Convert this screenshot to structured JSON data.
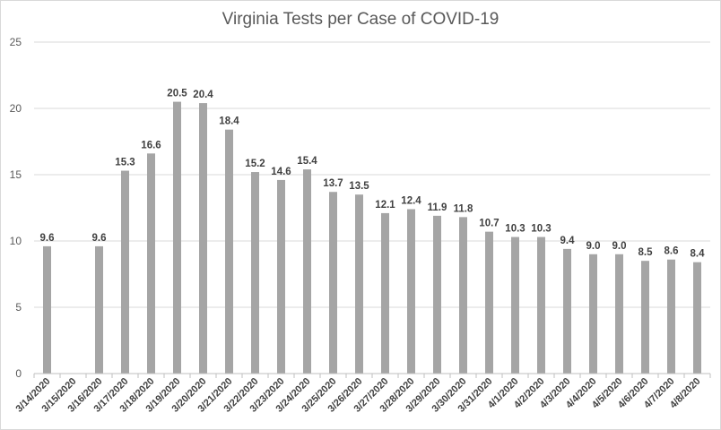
{
  "chart_data": {
    "type": "bar",
    "title": "Virginia Tests per Case of COVID-19",
    "xlabel": "",
    "ylabel": "",
    "ylim": [
      0,
      25
    ],
    "yticks": [
      "0",
      "5",
      "10",
      "15",
      "20",
      "25"
    ],
    "grid": true,
    "legend": "none",
    "bar_color": "#a5a5a5",
    "categories": [
      "3/14/2020",
      "3/15/2020",
      "3/16/2020",
      "3/17/2020",
      "3/18/2020",
      "3/19/2020",
      "3/20/2020",
      "3/21/2020",
      "3/22/2020",
      "3/23/2020",
      "3/24/2020",
      "3/25/2020",
      "3/26/2020",
      "3/27/2020",
      "3/28/2020",
      "3/29/2020",
      "3/30/2020",
      "3/31/2020",
      "4/1/2020",
      "4/2/2020",
      "4/3/2020",
      "4/4/2020",
      "4/5/2020",
      "4/6/2020",
      "4/7/2020",
      "4/8/2020"
    ],
    "values": [
      9.6,
      null,
      9.6,
      15.3,
      16.6,
      20.5,
      20.4,
      18.4,
      15.2,
      14.6,
      15.4,
      13.7,
      13.5,
      12.1,
      12.4,
      11.9,
      11.8,
      10.7,
      10.3,
      10.3,
      9.4,
      9.0,
      9.0,
      8.5,
      8.6,
      8.4
    ],
    "data_labels": [
      "9.6",
      "",
      "9.6",
      "15.3",
      "16.6",
      "20.5",
      "20.4",
      "18.4",
      "15.2",
      "14.6",
      "15.4",
      "13.7",
      "13.5",
      "12.1",
      "12.4",
      "11.9",
      "11.8",
      "10.7",
      "10.3",
      "10.3",
      "9.4",
      "9.0",
      "9.0",
      "8.5",
      "8.6",
      "8.4"
    ]
  }
}
